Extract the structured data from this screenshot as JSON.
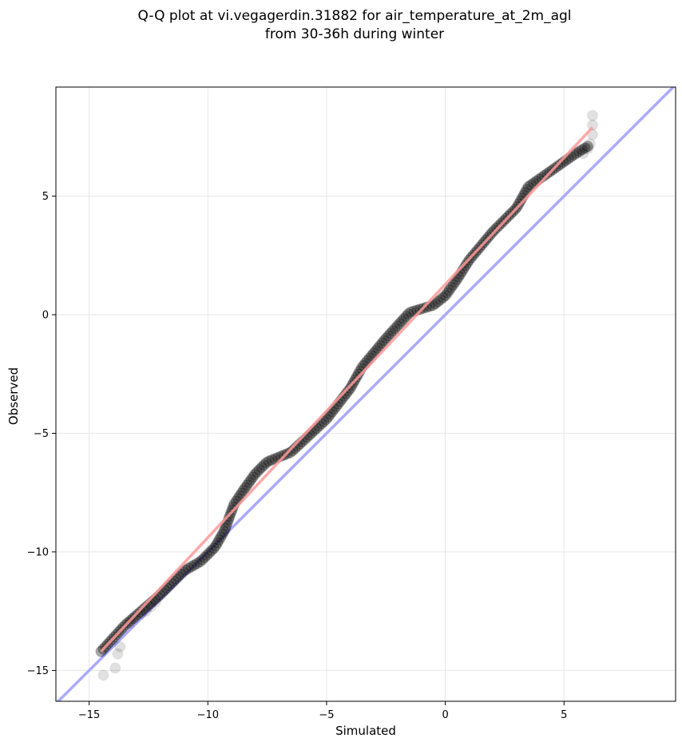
{
  "chart_data": {
    "type": "scatter",
    "title_lines": [
      "Q-Q plot at vi.vegagerdin.31882 for air_temperature_at_2m_agl",
      "from 30-36h during winter"
    ],
    "xlabel": "Simulated",
    "ylabel": "Observed",
    "xlim": [
      -16.4,
      9.7
    ],
    "ylim": [
      -16.3,
      9.6
    ],
    "xticks": [
      -15,
      -10,
      -5,
      0,
      5
    ],
    "yticks": [
      -15,
      -10,
      -5,
      0,
      5
    ],
    "xtick_labels": [
      "−15",
      "−10",
      "−5",
      "0",
      "5"
    ],
    "ytick_labels": [
      "−15",
      "−10",
      "−5",
      "0",
      "5"
    ],
    "grid": true,
    "identity_line": {
      "x": [
        -16.4,
        9.7
      ],
      "y": [
        -16.4,
        9.7
      ],
      "color": "#aaaaff"
    },
    "fit_line": {
      "x": [
        -14.5,
        6.2
      ],
      "y": [
        -14.2,
        7.9
      ],
      "color": "#ff9999"
    },
    "quantile_curve": {
      "knots": [
        [
          -14.5,
          -14.2
        ],
        [
          -13.5,
          -13.1
        ],
        [
          -12.0,
          -11.8
        ],
        [
          -11.0,
          -10.8
        ],
        [
          -10.3,
          -10.4
        ],
        [
          -9.7,
          -9.8
        ],
        [
          -9.3,
          -9.1
        ],
        [
          -8.9,
          -8.0
        ],
        [
          -8.5,
          -7.4
        ],
        [
          -8.0,
          -6.7
        ],
        [
          -7.5,
          -6.2
        ],
        [
          -6.5,
          -5.8
        ],
        [
          -5.0,
          -4.4
        ],
        [
          -4.0,
          -3.1
        ],
        [
          -3.5,
          -2.2
        ],
        [
          -2.5,
          -1.0
        ],
        [
          -1.5,
          0.1
        ],
        [
          -0.5,
          0.4
        ],
        [
          0.0,
          0.8
        ],
        [
          0.5,
          1.5
        ],
        [
          1.0,
          2.3
        ],
        [
          2.0,
          3.5
        ],
        [
          3.0,
          4.5
        ],
        [
          3.5,
          5.4
        ],
        [
          4.5,
          6.1
        ],
        [
          5.5,
          6.8
        ],
        [
          6.0,
          7.1
        ]
      ],
      "n_points": 220,
      "color": "#000000"
    },
    "tail_points": [
      [
        -14.4,
        -15.2
      ],
      [
        -13.9,
        -14.9
      ],
      [
        -13.8,
        -14.3
      ],
      [
        -13.7,
        -14.0
      ],
      [
        -13.3,
        -13.0
      ],
      [
        -13.1,
        -12.8
      ],
      [
        -12.8,
        -12.6
      ],
      [
        -12.6,
        -12.5
      ],
      [
        -12.4,
        -12.3
      ],
      [
        -12.2,
        -12.1
      ],
      [
        5.8,
        6.8
      ],
      [
        6.0,
        7.0
      ],
      [
        6.1,
        7.2
      ],
      [
        6.2,
        7.6
      ],
      [
        6.2,
        8.0
      ],
      [
        6.2,
        8.4
      ]
    ]
  }
}
